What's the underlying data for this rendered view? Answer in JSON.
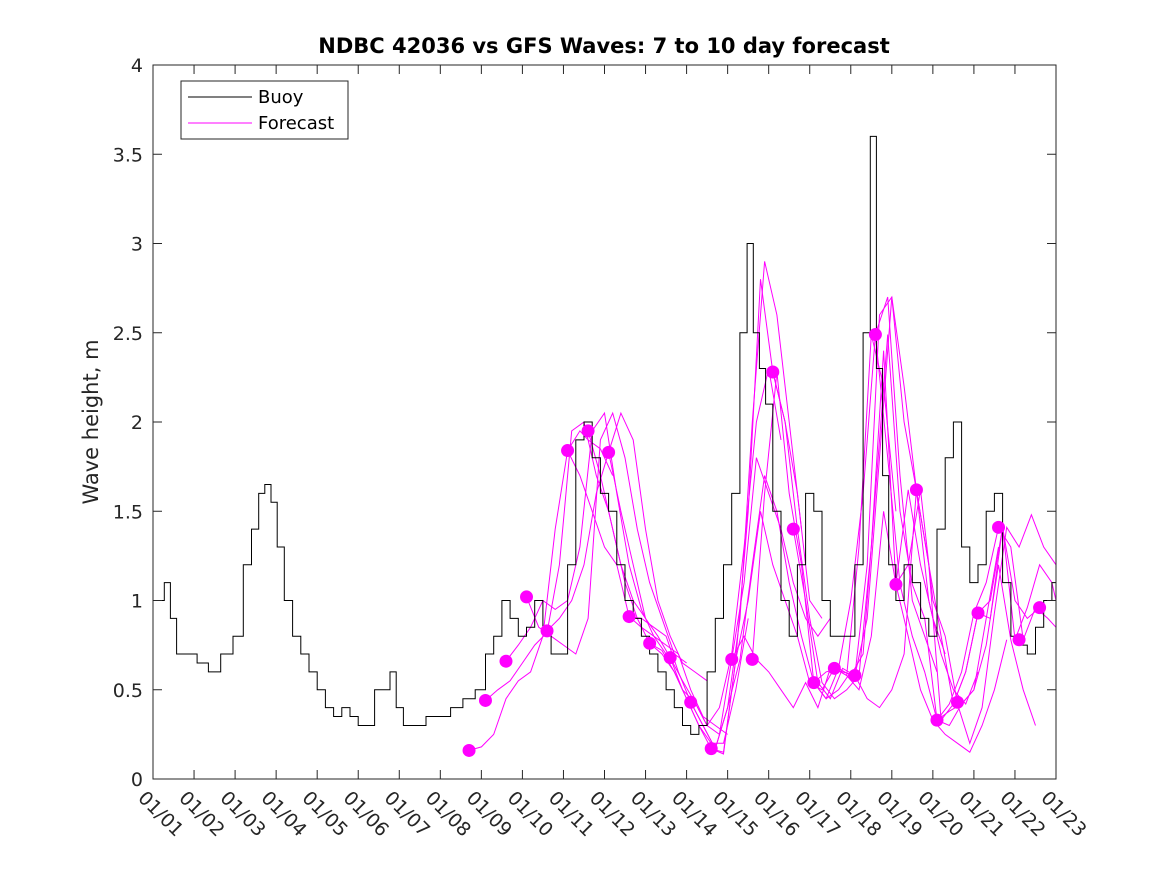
{
  "chart_data": {
    "type": "line",
    "title": "NDBC 42036 vs GFS Waves: 7 to 10 day forecast",
    "xlabel": "",
    "ylabel": "Wave height, m",
    "xlim": [
      1,
      23
    ],
    "ylim": [
      0,
      4
    ],
    "x_ticks": [
      1,
      2,
      3,
      4,
      5,
      6,
      7,
      8,
      9,
      10,
      11,
      12,
      13,
      14,
      15,
      16,
      17,
      18,
      19,
      20,
      21,
      22,
      23
    ],
    "x_tick_labels": [
      "01/01",
      "01/02",
      "01/03",
      "01/04",
      "01/05",
      "01/06",
      "01/07",
      "01/08",
      "01/09",
      "01/10",
      "01/11",
      "01/12",
      "01/13",
      "01/14",
      "01/15",
      "01/16",
      "01/17",
      "01/18",
      "01/19",
      "01/20",
      "01/21",
      "01/22",
      "01/23"
    ],
    "y_ticks": [
      0,
      0.5,
      1,
      1.5,
      2,
      2.5,
      3,
      3.5,
      4
    ],
    "y_tick_labels": [
      "0",
      "0.5",
      "1",
      "1.5",
      "2",
      "2.5",
      "3",
      "3.5",
      "4"
    ],
    "legend": {
      "placement": "top-left",
      "entries": [
        "Buoy",
        "Forecast"
      ]
    },
    "colors": {
      "buoy": "#000000",
      "forecast": "#ff00ff"
    },
    "buoy_series": {
      "name": "Buoy",
      "x": [
        1.0,
        1.2,
        1.35,
        1.5,
        1.65,
        1.8,
        1.95,
        2.2,
        2.5,
        2.8,
        3.1,
        3.3,
        3.5,
        3.65,
        3.8,
        3.95,
        4.1,
        4.3,
        4.5,
        4.7,
        4.9,
        5.1,
        5.3,
        5.5,
        5.7,
        5.9,
        6.1,
        6.3,
        6.5,
        6.7,
        6.85,
        7.0,
        7.2,
        7.5,
        7.8,
        8.1,
        8.4,
        8.7,
        9.0,
        9.2,
        9.4,
        9.6,
        9.8,
        10.0,
        10.2,
        10.4,
        10.6,
        10.8,
        11.0,
        11.2,
        11.4,
        11.6,
        11.8,
        12.0,
        12.2,
        12.4,
        12.6,
        12.8,
        13.0,
        13.2,
        13.4,
        13.6,
        13.8,
        14.0,
        14.2,
        14.4,
        14.6,
        14.8,
        15.0,
        15.2,
        15.4,
        15.55,
        15.7,
        15.85,
        16.0,
        16.2,
        16.4,
        16.6,
        16.8,
        17.0,
        17.2,
        17.4,
        17.6,
        17.8,
        18.0,
        18.2,
        18.4,
        18.55,
        18.7,
        18.85,
        19.0,
        19.2,
        19.4,
        19.6,
        19.8,
        20.0,
        20.2,
        20.4,
        20.6,
        20.8,
        21.0,
        21.2,
        21.4,
        21.6,
        21.8,
        22.0,
        22.2,
        22.4,
        22.6,
        22.8,
        23.0
      ],
      "values": [
        1.0,
        1.0,
        1.1,
        0.9,
        0.7,
        0.7,
        0.7,
        0.65,
        0.6,
        0.7,
        0.8,
        1.2,
        1.4,
        1.6,
        1.65,
        1.55,
        1.3,
        1.0,
        0.8,
        0.7,
        0.6,
        0.5,
        0.4,
        0.35,
        0.4,
        0.35,
        0.3,
        0.3,
        0.5,
        0.5,
        0.6,
        0.4,
        0.3,
        0.3,
        0.35,
        0.35,
        0.4,
        0.45,
        0.5,
        0.7,
        0.8,
        1.0,
        0.9,
        0.8,
        0.85,
        1.0,
        0.85,
        0.7,
        0.7,
        1.2,
        1.9,
        2.0,
        1.8,
        1.6,
        1.5,
        1.2,
        1.0,
        0.9,
        0.8,
        0.7,
        0.6,
        0.5,
        0.4,
        0.3,
        0.25,
        0.3,
        0.6,
        0.9,
        1.2,
        1.6,
        2.5,
        3.0,
        2.5,
        2.3,
        2.1,
        1.5,
        1.0,
        0.8,
        1.2,
        1.6,
        1.5,
        1.0,
        0.8,
        0.8,
        0.8,
        1.2,
        2.5,
        3.6,
        2.3,
        1.7,
        1.2,
        1.0,
        1.2,
        1.1,
        0.9,
        0.8,
        1.4,
        1.8,
        2.0,
        1.3,
        1.1,
        1.2,
        1.5,
        1.6,
        1.1,
        0.8,
        0.75,
        0.7,
        0.85,
        1.0,
        1.1
      ]
    },
    "forecast_series": [
      {
        "name": "Forecast",
        "x": [
          8.7,
          9.0,
          9.3,
          9.6,
          9.9,
          10.2,
          10.5,
          10.8,
          11.1,
          11.4,
          11.6,
          11.9,
          12.2
        ],
        "values": [
          0.16,
          0.18,
          0.25,
          0.45,
          0.55,
          0.6,
          0.8,
          1.4,
          1.84,
          1.95,
          1.9,
          1.85,
          1.7
        ]
      },
      {
        "name": "Forecast",
        "x": [
          9.1,
          9.4,
          9.7,
          10.0,
          10.3,
          10.6,
          10.9,
          11.2,
          11.5,
          11.8,
          12.1,
          12.4,
          12.7,
          13.0
        ],
        "values": [
          0.44,
          0.5,
          0.55,
          0.65,
          0.75,
          0.82,
          1.2,
          1.95,
          2.0,
          1.7,
          1.5,
          1.2,
          1.0,
          0.9
        ]
      },
      {
        "name": "Forecast",
        "x": [
          9.6,
          9.9,
          10.2,
          10.5,
          10.8,
          11.1,
          11.4,
          11.7,
          12.0,
          12.3,
          12.6,
          12.9,
          13.2,
          13.5
        ],
        "values": [
          0.66,
          0.75,
          0.85,
          1.0,
          0.95,
          1.0,
          1.3,
          1.95,
          2.05,
          1.6,
          1.2,
          0.95,
          0.8,
          0.7
        ]
      },
      {
        "name": "Forecast",
        "x": [
          10.1,
          10.4,
          10.7,
          11.0,
          11.3,
          11.6,
          11.9,
          12.2,
          12.5,
          12.8,
          13.1,
          13.4,
          13.7,
          14.0
        ],
        "values": [
          1.02,
          0.85,
          0.8,
          0.75,
          0.7,
          0.9,
          1.9,
          2.05,
          1.8,
          1.4,
          1.1,
          0.9,
          0.7,
          0.65
        ]
      },
      {
        "name": "Forecast",
        "x": [
          10.6,
          10.9,
          11.2,
          11.5,
          11.8,
          12.1,
          12.4,
          12.7,
          13.0,
          13.3,
          13.6,
          13.9,
          14.2,
          14.5
        ],
        "values": [
          0.83,
          0.9,
          1.0,
          1.2,
          1.6,
          1.83,
          2.05,
          1.9,
          1.4,
          1.0,
          0.8,
          0.65,
          0.6,
          0.55
        ]
      },
      {
        "name": "Forecast",
        "x": [
          11.1,
          11.4,
          11.7,
          12.0,
          12.3,
          12.6,
          12.9,
          13.2,
          13.5,
          13.8,
          14.1,
          14.4,
          14.7,
          15.0
        ],
        "values": [
          1.84,
          1.7,
          1.5,
          1.3,
          1.2,
          0.91,
          0.85,
          0.8,
          0.75,
          0.7,
          0.5,
          0.35,
          0.3,
          0.25
        ]
      },
      {
        "name": "Forecast",
        "x": [
          11.6,
          11.9,
          12.2,
          12.5,
          12.8,
          13.1,
          13.4,
          13.7,
          14.0,
          14.3,
          14.6,
          14.9,
          15.2,
          15.5
        ],
        "values": [
          1.95,
          1.7,
          1.4,
          1.1,
          0.9,
          0.76,
          0.7,
          0.6,
          0.45,
          0.3,
          0.2,
          0.2,
          0.5,
          0.9
        ]
      },
      {
        "name": "Forecast",
        "x": [
          12.1,
          12.4,
          12.7,
          13.0,
          13.3,
          13.6,
          13.9,
          14.2,
          14.5,
          14.8,
          15.1,
          15.4,
          15.7,
          16.0,
          16.3
        ],
        "values": [
          1.83,
          1.5,
          1.2,
          0.9,
          0.8,
          0.68,
          0.55,
          0.43,
          0.3,
          0.4,
          0.7,
          1.3,
          2.0,
          2.3,
          1.9
        ]
      },
      {
        "name": "Forecast",
        "x": [
          12.6,
          12.9,
          13.2,
          13.5,
          13.8,
          14.1,
          14.4,
          14.7,
          15.0,
          15.3,
          15.6,
          15.9,
          16.2,
          16.5,
          16.8
        ],
        "values": [
          0.91,
          0.9,
          0.85,
          0.8,
          0.6,
          0.43,
          0.3,
          0.17,
          0.4,
          0.9,
          2.0,
          2.9,
          2.6,
          2.0,
          1.4
        ]
      },
      {
        "name": "Forecast",
        "x": [
          13.1,
          13.4,
          13.7,
          14.0,
          14.3,
          14.6,
          14.9,
          15.2,
          15.5,
          15.8,
          16.1,
          16.4,
          16.7,
          17.0,
          17.3
        ],
        "values": [
          0.76,
          0.72,
          0.6,
          0.45,
          0.3,
          0.17,
          0.15,
          0.67,
          1.5,
          2.8,
          2.28,
          2.0,
          1.6,
          1.0,
          0.9
        ]
      },
      {
        "name": "Forecast",
        "x": [
          13.6,
          13.9,
          14.2,
          14.5,
          14.8,
          15.1,
          15.4,
          15.7,
          16.0,
          16.3,
          16.6,
          16.9,
          17.2,
          17.5
        ],
        "values": [
          0.68,
          0.5,
          0.43,
          0.3,
          0.25,
          0.67,
          1.1,
          1.8,
          1.6,
          1.4,
          1.1,
          0.9,
          0.8,
          0.9
        ]
      },
      {
        "name": "Forecast",
        "x": [
          14.1,
          14.4,
          14.7,
          15.0,
          15.3,
          15.6,
          15.9,
          16.2,
          16.5,
          16.8,
          17.1,
          17.4,
          17.7,
          18.0
        ],
        "values": [
          0.43,
          0.3,
          0.17,
          0.4,
          0.67,
          1.2,
          1.7,
          1.5,
          1.1,
          0.8,
          0.54,
          0.45,
          0.5,
          0.6
        ]
      },
      {
        "name": "Forecast",
        "x": [
          14.6,
          14.9,
          15.2,
          15.5,
          15.8,
          16.1,
          16.4,
          16.7,
          17.0,
          17.3,
          17.6,
          17.9,
          18.2,
          18.5,
          18.8,
          19.1
        ],
        "values": [
          0.17,
          0.14,
          0.67,
          1.0,
          1.5,
          1.2,
          1.0,
          0.8,
          0.54,
          0.5,
          0.62,
          0.58,
          1.3,
          2.49,
          2.2,
          1.5
        ]
      },
      {
        "name": "Forecast",
        "x": [
          15.1,
          15.4,
          15.7,
          16.0,
          16.3,
          16.6,
          16.9,
          17.2,
          17.5,
          17.8,
          18.1,
          18.4,
          18.7,
          19.0,
          19.3,
          19.6
        ],
        "values": [
          0.67,
          0.8,
          0.67,
          0.6,
          0.5,
          0.4,
          0.54,
          0.4,
          0.62,
          0.6,
          0.58,
          1.2,
          2.6,
          2.7,
          2.0,
          1.62
        ]
      },
      {
        "name": "Forecast",
        "x": [
          15.6,
          15.9,
          16.2,
          16.5,
          16.8,
          17.1,
          17.4,
          17.7,
          18.0,
          18.3,
          18.6,
          18.9,
          19.2,
          19.5,
          19.8,
          20.1
        ],
        "values": [
          0.67,
          1.6,
          2.28,
          1.6,
          1.2,
          0.54,
          0.45,
          0.62,
          1.0,
          1.6,
          2.49,
          2.7,
          1.7,
          1.0,
          0.8,
          0.6
        ]
      },
      {
        "name": "Forecast",
        "x": [
          16.1,
          16.4,
          16.7,
          17.0,
          17.3,
          17.6,
          17.9,
          18.2,
          18.5,
          18.8,
          19.1,
          19.4,
          19.7,
          20.0,
          20.3
        ],
        "values": [
          2.28,
          2.0,
          1.4,
          0.9,
          0.54,
          0.45,
          0.5,
          0.58,
          1.3,
          2.4,
          1.09,
          1.62,
          1.2,
          0.9,
          0.7
        ]
      },
      {
        "name": "Forecast",
        "x": [
          16.6,
          16.9,
          17.2,
          17.5,
          17.8,
          18.1,
          18.4,
          18.7,
          19.0,
          19.3,
          19.6,
          19.9,
          20.2,
          20.5,
          20.8,
          21.1
        ],
        "values": [
          1.4,
          1.0,
          0.54,
          0.45,
          0.62,
          0.58,
          0.9,
          1.8,
          2.7,
          2.2,
          1.62,
          1.0,
          0.7,
          0.5,
          0.42,
          0.6
        ]
      },
      {
        "name": "Forecast",
        "x": [
          17.1,
          17.4,
          17.7,
          18.0,
          18.3,
          18.6,
          18.9,
          19.2,
          19.5,
          19.8,
          20.1,
          20.4,
          20.7,
          21.0,
          21.3,
          21.6
        ],
        "values": [
          0.54,
          0.6,
          0.62,
          0.58,
          0.7,
          1.6,
          2.49,
          1.5,
          1.09,
          0.9,
          0.33,
          0.3,
          0.42,
          0.5,
          0.9,
          1.3
        ]
      },
      {
        "name": "Forecast",
        "x": [
          17.6,
          17.9,
          18.2,
          18.5,
          18.8,
          19.1,
          19.4,
          19.7,
          20.0,
          20.3,
          20.6,
          20.9,
          21.2,
          21.5,
          21.8
        ],
        "values": [
          0.62,
          0.58,
          0.5,
          0.8,
          1.5,
          1.09,
          0.8,
          0.5,
          0.33,
          0.25,
          0.2,
          0.15,
          0.3,
          0.5,
          0.78
        ]
      },
      {
        "name": "Forecast",
        "x": [
          18.1,
          18.4,
          18.7,
          19.0,
          19.3,
          19.6,
          19.9,
          20.2,
          20.5,
          20.8,
          21.1,
          21.4,
          21.7,
          22.0,
          22.3,
          22.6
        ],
        "values": [
          0.58,
          0.45,
          0.4,
          0.5,
          0.7,
          1.62,
          1.2,
          0.8,
          0.42,
          0.6,
          0.93,
          0.9,
          1.41,
          1.0,
          0.9,
          0.96
        ]
      },
      {
        "name": "Forecast",
        "x": [
          18.6,
          18.9,
          19.2,
          19.5,
          19.8,
          20.1,
          20.4,
          20.7,
          21.0,
          21.3,
          21.6,
          21.9,
          22.2,
          22.5,
          22.8,
          23.0
        ],
        "values": [
          2.49,
          1.8,
          1.09,
          0.8,
          0.6,
          0.33,
          0.42,
          0.6,
          0.93,
          1.1,
          1.41,
          1.3,
          0.78,
          0.96,
          0.9,
          0.85
        ]
      },
      {
        "name": "Forecast",
        "x": [
          19.1,
          19.4,
          19.7,
          20.0,
          20.3,
          20.6,
          20.9,
          21.2,
          21.5,
          21.8,
          22.1,
          22.4,
          22.7,
          23.0
        ],
        "values": [
          1.09,
          1.2,
          1.62,
          1.0,
          0.8,
          0.42,
          0.2,
          0.4,
          0.93,
          1.41,
          1.3,
          1.48,
          1.3,
          1.2
        ]
      },
      {
        "name": "Forecast",
        "x": [
          19.6,
          19.9,
          20.2,
          20.5,
          20.8,
          21.1,
          21.4,
          21.7,
          22.0,
          22.3,
          22.6,
          22.9,
          23.0
        ],
        "values": [
          1.62,
          1.2,
          0.33,
          0.42,
          0.6,
          0.93,
          1.0,
          1.41,
          0.78,
          0.96,
          1.2,
          1.1,
          1.0
        ]
      },
      {
        "name": "Forecast",
        "x": [
          20.1,
          20.4,
          20.7,
          21.0,
          21.3,
          21.6,
          21.9,
          22.2,
          22.5
        ],
        "values": [
          0.33,
          0.38,
          0.42,
          0.5,
          0.75,
          1.2,
          0.78,
          0.5,
          0.3
        ]
      }
    ],
    "forecast_markers": {
      "name": "Forecast",
      "x": [
        8.7,
        9.1,
        9.6,
        10.1,
        10.6,
        11.1,
        11.6,
        12.1,
        12.6,
        13.1,
        13.6,
        14.1,
        14.6,
        15.1,
        15.6,
        16.1,
        16.6,
        17.1,
        17.6,
        18.1,
        18.6,
        19.1,
        19.6,
        20.1,
        20.6,
        21.1,
        21.6,
        22.1,
        22.6
      ],
      "values": [
        0.16,
        0.44,
        0.66,
        1.02,
        0.83,
        1.84,
        1.95,
        1.83,
        0.91,
        0.76,
        0.68,
        0.43,
        0.17,
        0.67,
        0.67,
        2.28,
        1.4,
        0.54,
        0.62,
        0.58,
        2.49,
        1.09,
        1.62,
        0.33,
        0.43,
        0.93,
        1.41,
        0.78,
        0.96
      ]
    }
  }
}
